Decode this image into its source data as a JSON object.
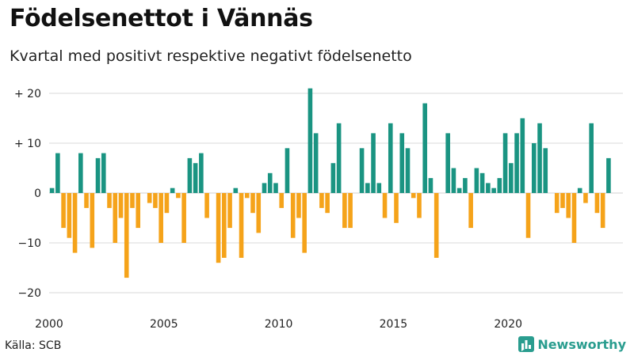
{
  "header": {
    "title": "Födelsenettot i Vännäs",
    "subtitle": "Kvartal med positivt respektive negativt födelsenetto"
  },
  "footer": {
    "source": "Källa: SCB",
    "brand": "Newsworthy"
  },
  "colors": {
    "positive": "#1a9482",
    "negative": "#f5a31a",
    "gridline": "#d9d9d9",
    "brand": "#2a9d8f"
  },
  "chart_data": {
    "type": "bar",
    "title": "Födelsenettot i Vännäs",
    "subtitle": "Kvartal med positivt respektive negativt födelsenetto",
    "xlabel": "",
    "ylabel": "",
    "ylim": [
      -22,
      23
    ],
    "yticks": [
      20,
      10,
      0,
      -10,
      -20
    ],
    "ytick_labels": [
      "+ 20",
      "+ 10",
      "0",
      "−10",
      "−20"
    ],
    "xticks": [
      2000,
      2005,
      2010,
      2015,
      2020
    ],
    "xtick_labels": [
      "2000",
      "2005",
      "2010",
      "2015",
      "2020"
    ],
    "grid": true,
    "x_start_year": 2000,
    "periods_per_year": 4,
    "values": [
      1,
      8,
      -7,
      -9,
      -12,
      8,
      -3,
      -11,
      7,
      8,
      -3,
      -10,
      -5,
      -17,
      -3,
      -7,
      0,
      -2,
      -3,
      -10,
      -4,
      1,
      -1,
      -10,
      7,
      6,
      8,
      -5,
      0,
      -14,
      -13,
      -7,
      1,
      -13,
      -1,
      -4,
      -8,
      2,
      4,
      2,
      -3,
      9,
      -9,
      -5,
      -12,
      21,
      12,
      -3,
      -4,
      6,
      14,
      -7,
      -7,
      0,
      9,
      2,
      12,
      2,
      -5,
      14,
      -6,
      12,
      9,
      -1,
      -5,
      18,
      3,
      -13,
      0,
      12,
      5,
      1,
      3,
      -7,
      5,
      4,
      2,
      1,
      3,
      12,
      6,
      12,
      15,
      -9,
      10,
      14,
      9,
      0,
      -4,
      -3,
      -5,
      -10,
      1,
      -2,
      14,
      -4,
      -7,
      7
    ]
  }
}
